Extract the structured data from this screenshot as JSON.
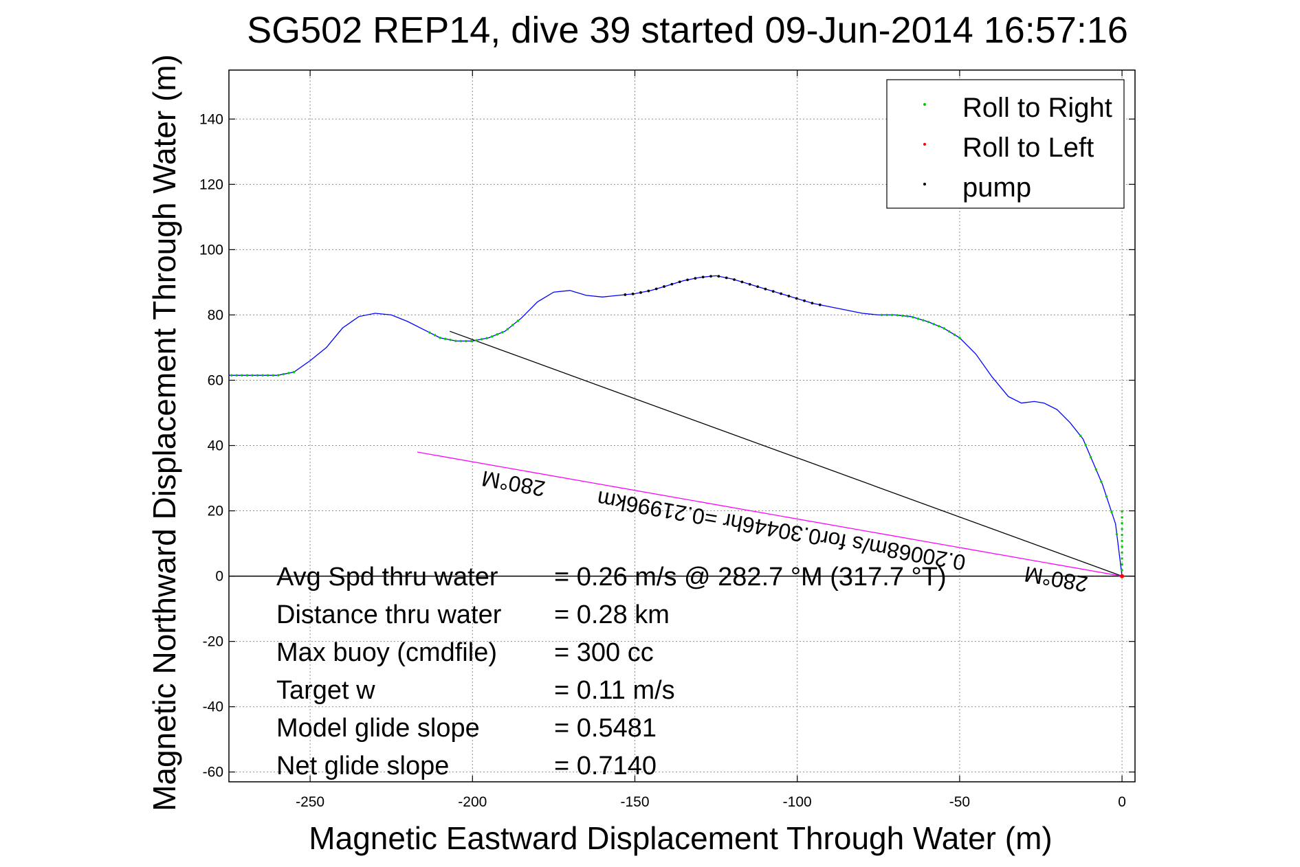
{
  "chart_data": {
    "type": "scatter",
    "title": "SG502 REP14, dive 39 started 09-Jun-2014 16:57:16",
    "xlabel": "Magnetic Eastward Displacement Through Water (m)",
    "ylabel": "Magnetic Northward Displacement Through Water (m)",
    "xlim": [
      -275,
      4
    ],
    "ylim": [
      -63,
      155
    ],
    "xticks": [
      -250,
      -200,
      -150,
      -100,
      -50,
      0
    ],
    "yticks": [
      -60,
      -40,
      -20,
      0,
      20,
      40,
      60,
      80,
      100,
      120,
      140
    ],
    "grid": true,
    "legend_position": "top-right",
    "legend": [
      "Roll to Right",
      "Roll to Left",
      "pump"
    ],
    "colors": {
      "track": "#0000ff",
      "roll_right": "#00cc00",
      "roll_left": "#ff0000",
      "pump": "#000000",
      "heading_line": "#ff00ff",
      "current_line": "#000000"
    },
    "track": {
      "x": [
        0,
        -1,
        -2,
        -4,
        -6,
        -9,
        -12,
        -16,
        -20,
        -24,
        -27,
        -31,
        -35,
        -40,
        -45,
        -50,
        -55,
        -60,
        -65,
        -70,
        -75,
        -80,
        -85,
        -90,
        -95,
        -100,
        -105,
        -110,
        -115,
        -120,
        -125,
        -130,
        -135,
        -140,
        -145,
        -150,
        -155,
        -160,
        -165,
        -170,
        -175,
        -180,
        -185,
        -190,
        -195,
        -200,
        -205,
        -210,
        -215,
        -220,
        -225,
        -230,
        -235,
        -240,
        -245,
        -250,
        -255,
        -260,
        -265,
        -270,
        -275
      ],
      "y": [
        0,
        8,
        16,
        22,
        28,
        35,
        42,
        47,
        51,
        53,
        53.5,
        53,
        55,
        61,
        68,
        73,
        76,
        78,
        79.5,
        80,
        80,
        80.5,
        81.5,
        82.5,
        83.5,
        85,
        86.5,
        88,
        89.5,
        91,
        92,
        91.5,
        90.5,
        89,
        87.5,
        86.5,
        86,
        85.5,
        86,
        87.5,
        87,
        84,
        79,
        75,
        73,
        72,
        72,
        73,
        75.5,
        78,
        80,
        80.5,
        79.5,
        76,
        70,
        66,
        62.5,
        61.5,
        61.5,
        61.5,
        61.5
      ]
    },
    "roll_right": {
      "x_ranges": [
        [
          -14,
          0
        ],
        [
          -75,
          -50
        ],
        [
          -214,
          -186
        ],
        [
          -275,
          -255
        ]
      ]
    },
    "pump": {
      "x_ranges": [
        [
          -155,
          -93
        ]
      ]
    },
    "roll_left": {
      "x": [
        0
      ],
      "y": [
        0
      ]
    },
    "current_line": {
      "x": [
        0,
        -207
      ],
      "y": [
        0,
        75
      ]
    },
    "heading_line": {
      "x": [
        0,
        -217
      ],
      "y": [
        0,
        38
      ]
    },
    "annotations": {
      "heading_upper": "280°M",
      "heading_lower": "280°M",
      "speed_note": "0.20068m/s for0.30446hr =0.21996km"
    },
    "stats": [
      {
        "label": "Avg Spd thru water",
        "value": "=  0.26 m/s @ 282.7 °M (317.7 °T)"
      },
      {
        "label": "Distance thru water",
        "value": "=  0.28 km"
      },
      {
        "label": "Max buoy (cmdfile)",
        "value": "= 300 cc"
      },
      {
        "label": "Target w",
        "value": "= 0.11 m/s"
      },
      {
        "label": "Model glide slope",
        "value": "= 0.5481"
      },
      {
        "label": "Net glide slope",
        "value": "= 0.7140"
      }
    ]
  }
}
